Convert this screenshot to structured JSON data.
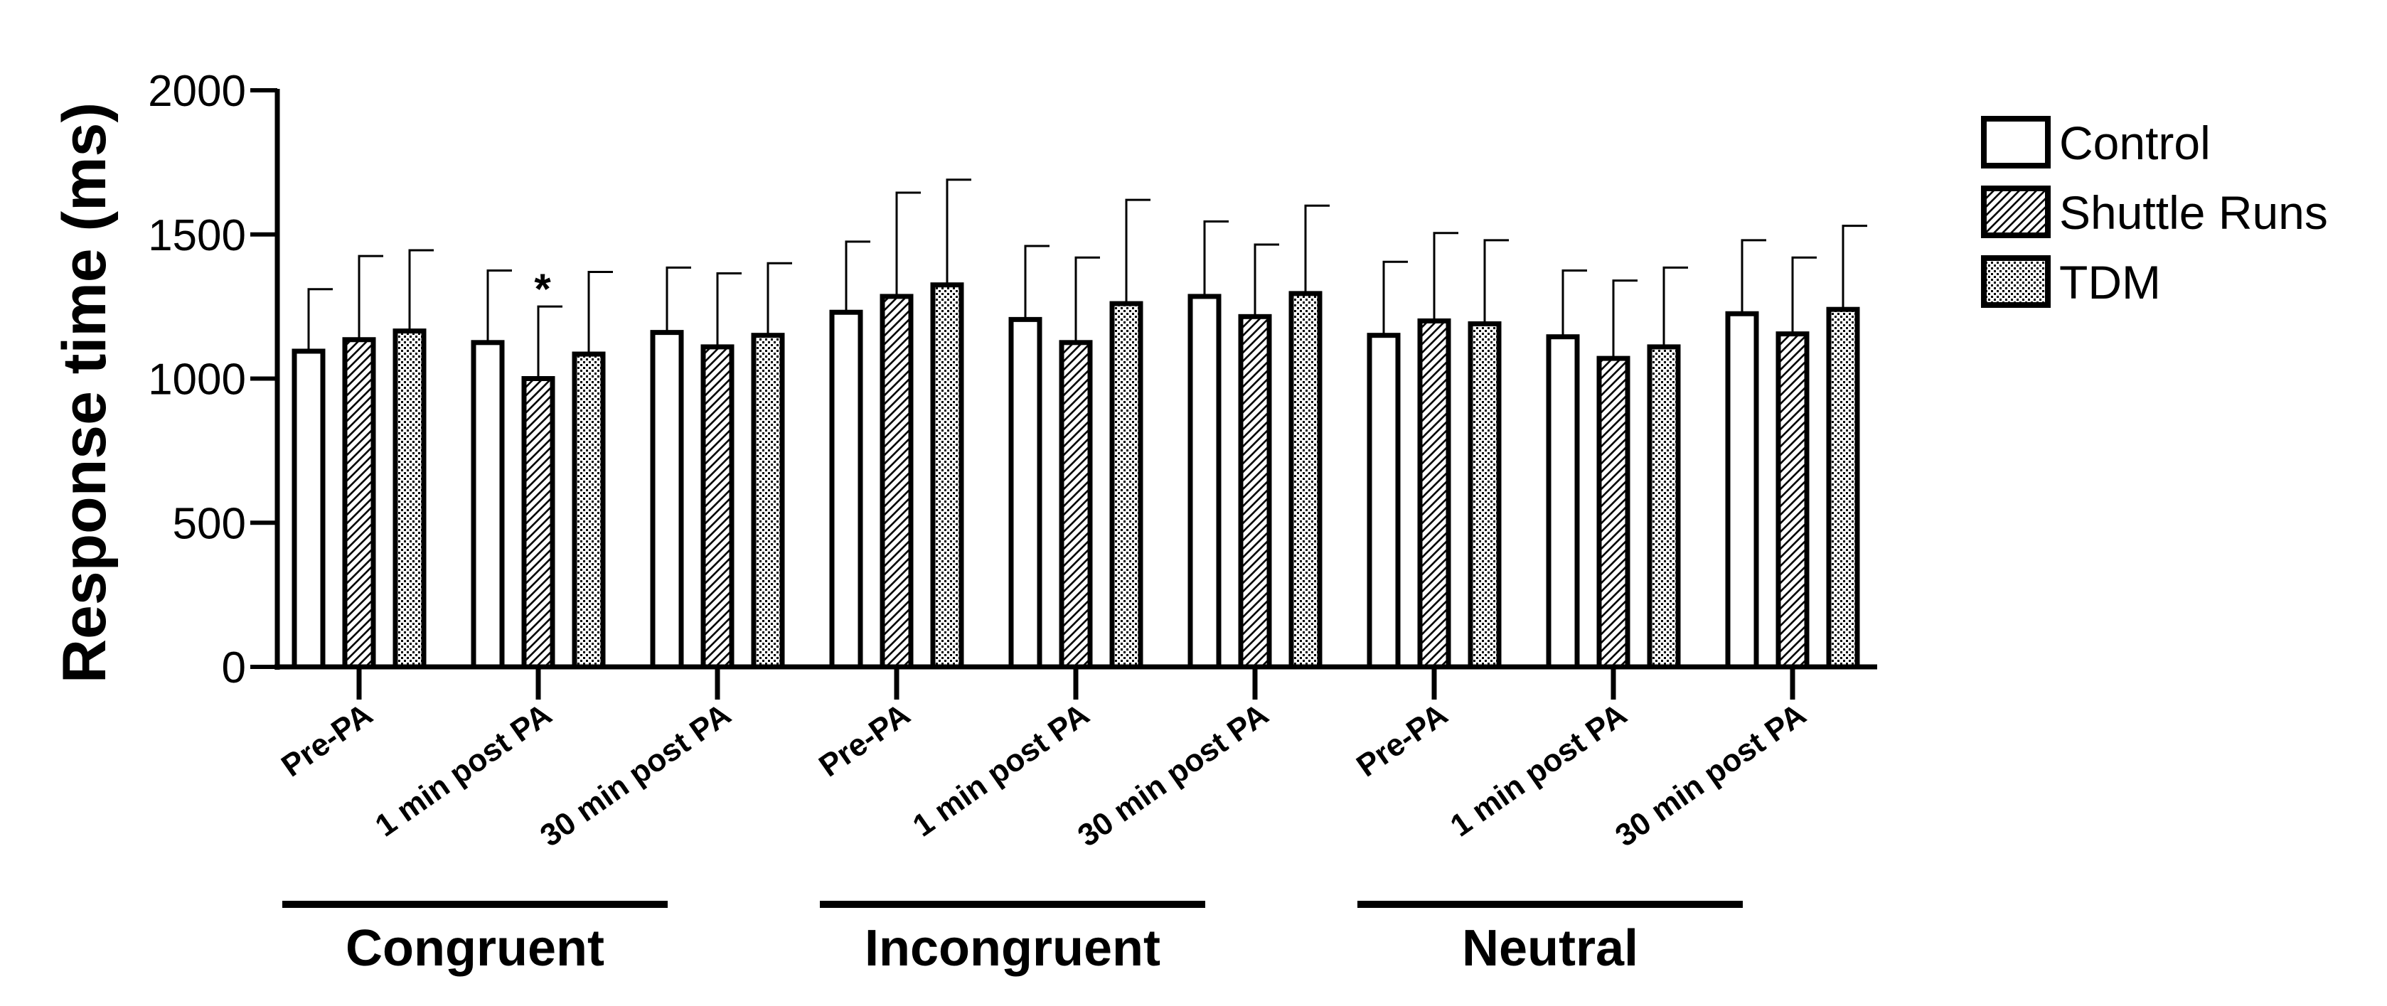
{
  "chart_data": {
    "type": "bar",
    "title": "",
    "ylabel": "Response time (ms)",
    "ylim": [
      0,
      2000
    ],
    "yticks": [
      0,
      500,
      1000,
      1500,
      2000
    ],
    "categories": [
      "Pre-PA",
      "1 min post PA",
      "30 min post PA",
      "Pre-PA",
      "1 min post PA",
      "30 min post PA",
      "Pre-PA",
      "1 min post PA",
      "30 min post PA"
    ],
    "groups": [
      {
        "label": "Congruent",
        "start": 0,
        "end": 2
      },
      {
        "label": "Incongruent",
        "start": 3,
        "end": 5
      },
      {
        "label": "Neutral",
        "start": 6,
        "end": 8
      }
    ],
    "series": [
      {
        "name": "Control",
        "pattern": "open",
        "values": [
          1095,
          1125,
          1160,
          1230,
          1205,
          1285,
          1150,
          1145,
          1225
        ],
        "error": [
          215,
          250,
          225,
          245,
          255,
          260,
          255,
          230,
          255
        ]
      },
      {
        "name": "Shuttle Runs",
        "pattern": "hatched",
        "values": [
          1135,
          1000,
          1110,
          1285,
          1125,
          1215,
          1200,
          1070,
          1155
        ],
        "error": [
          290,
          250,
          255,
          360,
          295,
          250,
          305,
          270,
          265
        ]
      },
      {
        "name": "TDM",
        "pattern": "dotted",
        "values": [
          1165,
          1085,
          1150,
          1325,
          1260,
          1295,
          1190,
          1110,
          1240
        ],
        "error": [
          280,
          285,
          250,
          365,
          360,
          305,
          290,
          275,
          290
        ]
      }
    ],
    "annotations": [
      {
        "text": "*",
        "series": "Shuttle Runs",
        "category_index": 1
      }
    ],
    "legend_position": "top-right",
    "grid": false
  }
}
